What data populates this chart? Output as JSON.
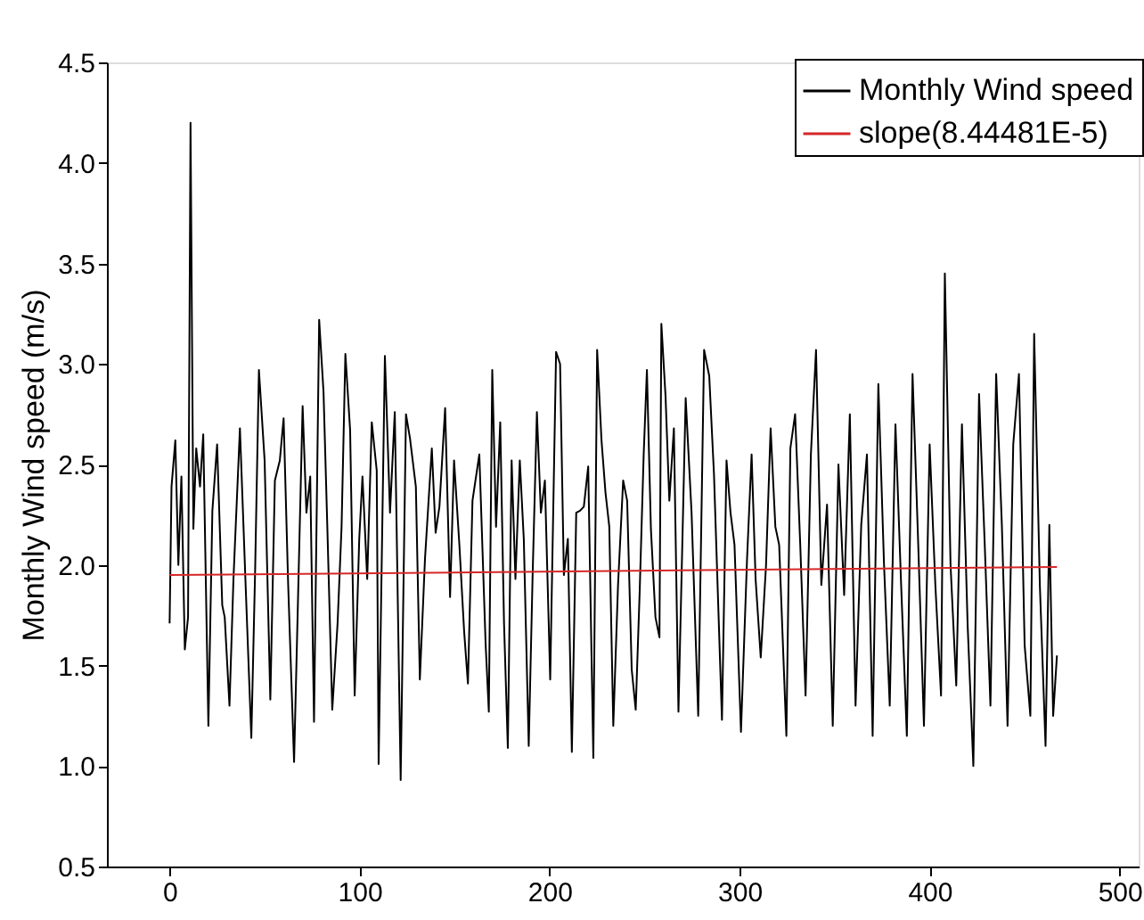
{
  "chart_data": {
    "type": "line",
    "ylabel": "Monthly Wind speed (m/s)",
    "xlim": [
      -33,
      510
    ],
    "ylim": [
      0.5,
      4.5
    ],
    "xticks": [
      0,
      100,
      200,
      300,
      400,
      500
    ],
    "yticks": [
      0.5,
      {
        "value": 1,
        "label": "1.0"
      },
      1.5,
      {
        "value": 2,
        "label": "2.0"
      },
      2.5,
      {
        "value": 3,
        "label": "3.0"
      },
      3.5,
      {
        "value": 4,
        "label": "4.0"
      },
      4.5
    ],
    "grid": false,
    "legend": "top right",
    "marker": "none",
    "line_style": "solid",
    "series": [
      {
        "name": "Monthly Wind speed",
        "color": "#000000",
        "x": [
          0,
          1,
          3,
          4.6,
          6.2,
          8,
          9.7,
          11,
          12.5,
          14,
          16,
          17.7,
          20.4,
          22.5,
          25,
          27.7,
          29,
          31.5,
          33.6,
          37,
          40,
          43,
          45,
          47,
          50,
          53,
          55.4,
          58,
          60,
          62.4,
          65.5,
          67.6,
          70,
          72,
          74,
          76,
          78.7,
          81,
          83,
          85.6,
          88.4,
          90.5,
          92.5,
          95,
          97.4,
          99.8,
          101.5,
          104,
          106.4,
          109,
          110,
          113.3,
          116,
          118.5,
          121.6,
          124.4,
          126.5,
          129.6,
          131.7,
          134.4,
          138,
          140,
          142,
          145,
          147.6,
          149.7,
          152.5,
          155,
          157,
          159.4,
          163,
          166.3,
          168,
          169.8,
          171.8,
          174,
          176,
          178,
          180,
          182,
          184.3,
          186.4,
          189,
          191,
          193.3,
          195.4,
          197.5,
          200.3,
          203.4,
          205.5,
          207.5,
          209.6,
          211.7,
          214,
          216,
          218,
          220.3,
          223,
          225,
          227.3,
          229.4,
          231.4,
          233.5,
          236,
          238.7,
          240.8,
          243.2,
          245.3,
          247.4,
          249.5,
          251.2,
          253.3,
          255.7,
          257.8,
          258.8,
          261,
          263,
          265.4,
          267.8,
          271.6,
          274.7,
          278.2,
          281.3,
          284,
          286.5,
          290.7,
          293.1,
          295.2,
          297.3,
          300.7,
          303.9,
          306.3,
          308.4,
          311.1,
          313.9,
          316.3,
          318.8,
          320.8,
          324.6,
          326.7,
          329.2,
          331.9,
          334.7,
          337.5,
          340.2,
          343,
          346,
          349,
          352,
          355,
          358,
          361,
          364,
          367,
          370,
          373,
          376,
          379,
          382,
          385,
          388,
          391,
          394,
          397,
          400,
          403,
          406,
          408,
          411,
          414,
          417,
          420,
          423,
          426,
          429,
          432,
          435,
          438,
          441,
          444,
          447,
          450,
          453,
          455,
          458,
          461,
          463,
          465,
          467
        ],
        "values": [
          1.71,
          2.39,
          2.62,
          2.0,
          2.44,
          1.58,
          1.74,
          4.2,
          2.18,
          2.58,
          2.39,
          2.65,
          1.2,
          2.27,
          2.6,
          1.8,
          1.74,
          1.3,
          1.93,
          2.68,
          1.9,
          1.14,
          1.97,
          2.97,
          2.52,
          1.33,
          2.42,
          2.52,
          2.73,
          1.9,
          1.02,
          1.84,
          2.79,
          2.26,
          2.44,
          1.22,
          3.22,
          2.86,
          2.19,
          1.28,
          1.71,
          2.19,
          3.05,
          2.67,
          1.35,
          2.13,
          2.44,
          1.93,
          2.71,
          2.47,
          1.01,
          3.04,
          2.26,
          2.76,
          0.93,
          2.75,
          2.63,
          2.39,
          1.43,
          2.03,
          2.58,
          2.16,
          2.29,
          2.78,
          1.84,
          2.52,
          2.1,
          1.67,
          1.41,
          2.32,
          2.55,
          1.61,
          1.27,
          2.97,
          2.19,
          2.71,
          1.71,
          1.09,
          2.52,
          1.93,
          2.52,
          2.13,
          1.1,
          1.93,
          2.76,
          2.26,
          2.42,
          1.43,
          3.06,
          3.0,
          1.95,
          2.13,
          1.07,
          2.26,
          2.27,
          2.29,
          2.49,
          1.04,
          3.07,
          2.62,
          2.36,
          2.19,
          1.2,
          1.9,
          2.42,
          2.32,
          1.48,
          1.28,
          1.87,
          2.55,
          2.97,
          2.18,
          1.74,
          1.64,
          3.2,
          2.84,
          2.32,
          2.68,
          1.27,
          2.83,
          2.26,
          1.25,
          3.07,
          2.94,
          2.45,
          1.23,
          2.52,
          2.26,
          2.1,
          1.17,
          2.03,
          2.55,
          1.93,
          1.54,
          2.0,
          2.68,
          2.19,
          2.1,
          1.15,
          2.58,
          2.75,
          2.1,
          1.35,
          2.55,
          3.07,
          1.9,
          2.3,
          1.2,
          2.5,
          1.85,
          2.75,
          1.3,
          2.2,
          2.55,
          1.15,
          2.9,
          2.0,
          1.3,
          2.7,
          1.9,
          1.15,
          2.95,
          2.1,
          1.2,
          2.6,
          1.9,
          1.35,
          3.45,
          2.0,
          1.4,
          2.7,
          1.7,
          1.0,
          2.85,
          2.1,
          1.3,
          2.95,
          2.2,
          1.2,
          2.6,
          2.95,
          1.6,
          1.25,
          3.15,
          1.9,
          1.1,
          2.2,
          1.25,
          1.55
        ]
      },
      {
        "name": "slope(8.44481E-5)",
        "color": "#d62728",
        "x": [
          0,
          467
        ],
        "values": [
          1.95,
          1.99
        ]
      }
    ]
  }
}
